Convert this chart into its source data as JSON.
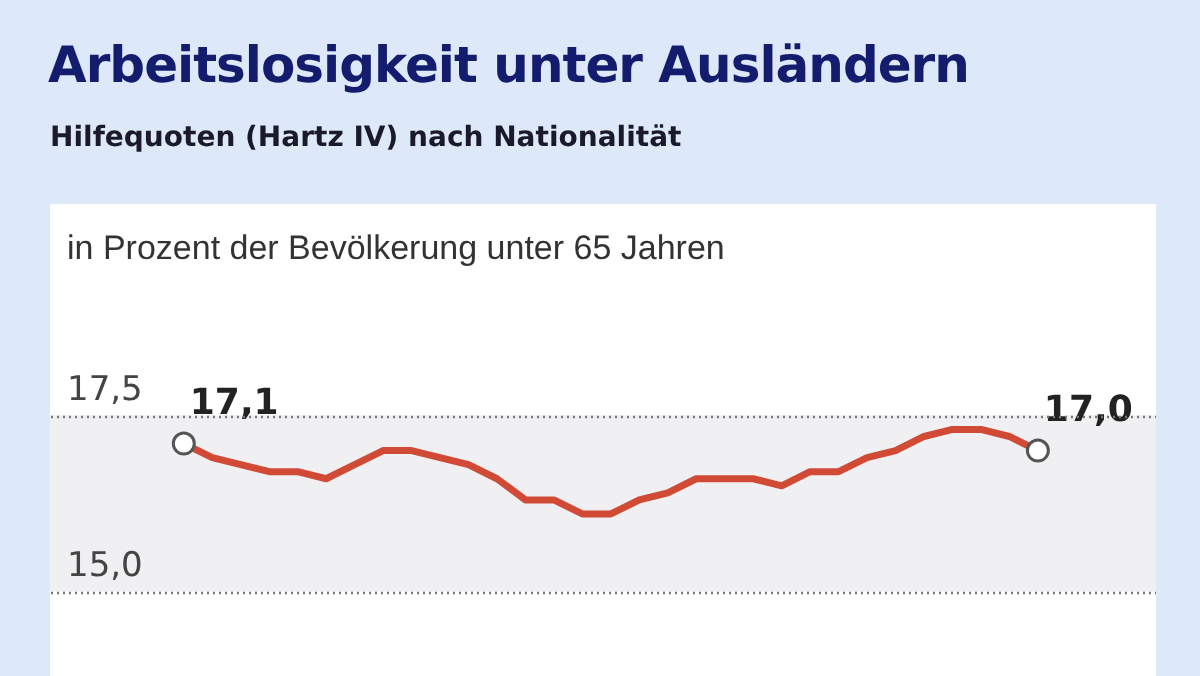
{
  "chart_data": {
    "type": "line",
    "title": "Arbeitslosigkeit unter Ausländern",
    "subtitle": "Hilfequoten (Hartz IV) nach Nationalität",
    "ylabel": "in Prozent der Bevölkerung unter 65 Jahren",
    "categories": [
      null,
      null,
      null,
      null,
      null,
      null,
      null,
      null,
      null,
      null,
      null,
      null,
      null,
      null,
      null,
      null,
      null,
      null,
      null,
      null,
      null,
      null,
      null,
      null,
      null,
      null,
      null,
      null,
      null,
      null,
      null
    ],
    "series": [
      {
        "color": "#d04a35",
        "values": [
          17.1,
          16.9,
          16.8,
          16.7,
          16.7,
          16.6,
          16.8,
          17.0,
          17.0,
          16.9,
          16.8,
          16.6,
          16.3,
          16.3,
          16.1,
          16.1,
          16.3,
          16.4,
          16.6,
          16.6,
          16.6,
          16.5,
          16.7,
          16.7,
          16.9,
          17.0,
          17.2,
          17.3,
          17.3,
          17.2,
          17.0
        ],
        "value_labels": [
          "17,1",
          null,
          null,
          null,
          null,
          null,
          null,
          null,
          null,
          null,
          null,
          null,
          null,
          null,
          null,
          null,
          null,
          null,
          null,
          null,
          null,
          null,
          null,
          null,
          null,
          null,
          null,
          null,
          null,
          null,
          "17,0"
        ]
      }
    ],
    "ylim": [
      13.8,
      20.5
    ],
    "yticks": [
      {
        "value": 15,
        "label": "15,0"
      },
      {
        "value": 17.5,
        "label": "17,5"
      }
    ],
    "grid": "y",
    "bands": [
      {
        "axis": "y",
        "from": 15,
        "to": 17.5,
        "color": "#f0f0f2"
      }
    ]
  }
}
